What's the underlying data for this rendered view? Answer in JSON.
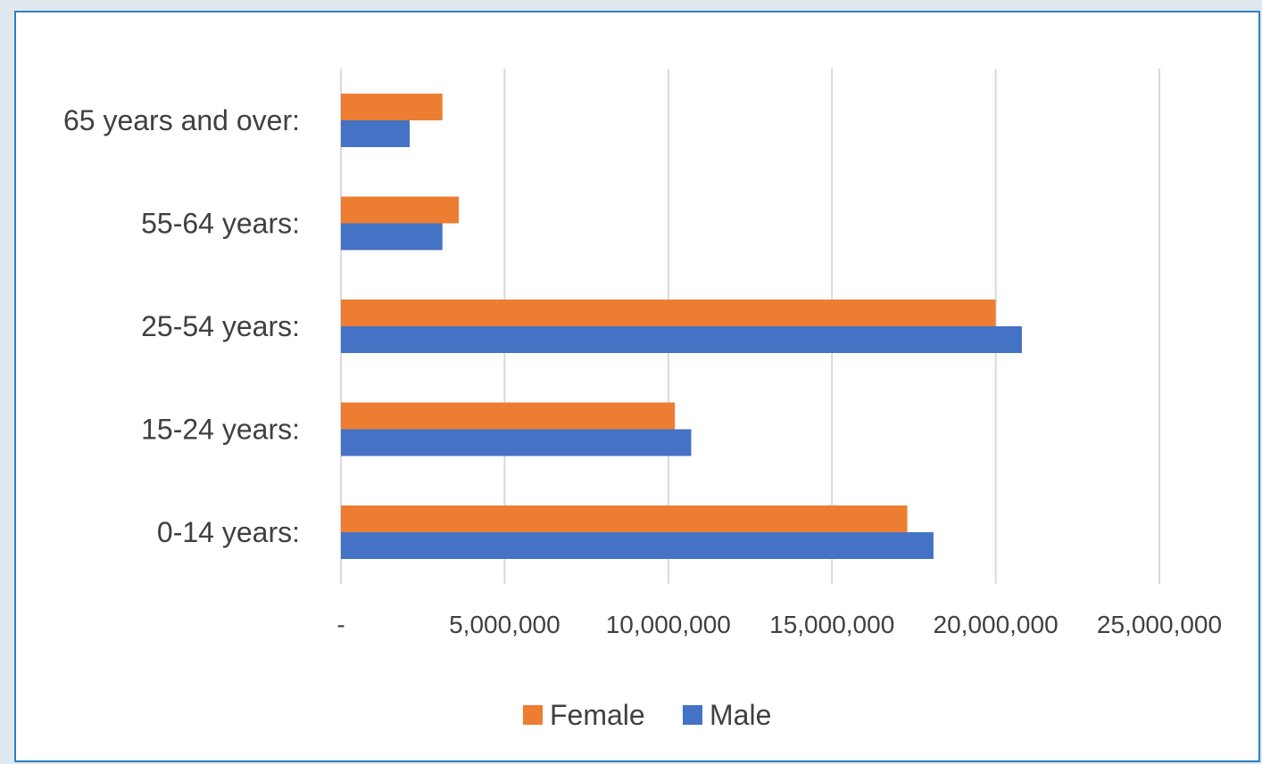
{
  "chart_data": {
    "type": "bar",
    "orientation": "horizontal",
    "categories": [
      "65 years and over:",
      "55-64 years:",
      "25-54 years:",
      "15-24 years:",
      "0-14 years:"
    ],
    "series": [
      {
        "name": "Female",
        "color": "#ED7D31",
        "values": [
          3100000,
          3600000,
          20000000,
          10200000,
          17300000
        ]
      },
      {
        "name": "Male",
        "color": "#4472C4",
        "values": [
          2100000,
          3100000,
          20800000,
          10700000,
          18100000
        ]
      }
    ],
    "xlim": [
      0,
      25000000
    ],
    "x_ticks": [
      0,
      5000000,
      10000000,
      15000000,
      20000000,
      25000000
    ],
    "x_tick_labels": [
      "-",
      "5,000,000",
      "10,000,000",
      "15,000,000",
      "20,000,000",
      "25,000,000"
    ],
    "grid": "vertical",
    "legend_position": "bottom"
  }
}
